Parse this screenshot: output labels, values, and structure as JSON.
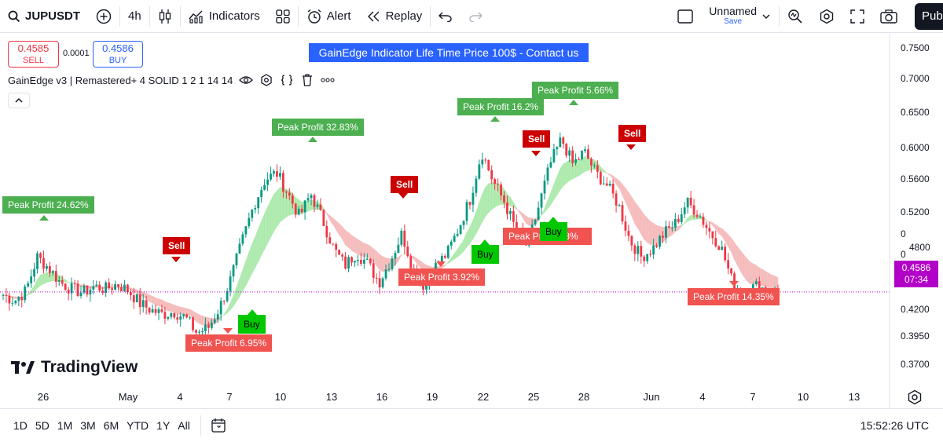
{
  "toolbar": {
    "symbol": "JUPUSDT",
    "interval": "4h",
    "indicators_label": "Indicators",
    "alert_label": "Alert",
    "replay_label": "Replay",
    "layout_name": "Unnamed",
    "layout_save": "Save",
    "publish_label": "Pub"
  },
  "trade_panel": {
    "sell_price": "0.4585",
    "sell_label": "SELL",
    "spread": "0.0001",
    "buy_price": "0.4586",
    "buy_label": "BUY"
  },
  "banner": "GainEdge Indicator Life Time Price 100$ - Contact us",
  "indicator": {
    "title": "GainEdge v3 | Remastered+ 4 SOLID 1 2 1 14 14",
    "icons": [
      "eye-icon",
      "settings-icon",
      "source-code-icon",
      "trash-icon",
      "more-icon"
    ]
  },
  "signals": {
    "peak_profit_1": "Peak Profit 24.62%",
    "sell_1": "Sell",
    "buy_1": "Buy",
    "peak_profit_2": "Peak Profit 6.95%",
    "peak_profit_3": "Peak Profit 32.83%",
    "sell_2": "Sell",
    "peak_profit_4": "Peak Profit 3.92%",
    "buy_2": "Buy",
    "peak_profit_5": "Peak Profit 16.2%",
    "sell_3": "Sell",
    "buy_3": "Buy",
    "peak_profit_6": "Peak Pr",
    "peak_profit_6_tail": "98%",
    "peak_profit_7": "Peak Profit 5.66%",
    "sell_4": "Sell",
    "peak_profit_8": "Peak Profit 14.35%"
  },
  "current_price": {
    "value": "0.4586",
    "countdown": "07:34"
  },
  "logo": "TradingView",
  "price_axis": [
    "0.7500",
    "0.7000",
    "0.6500",
    "0.6000",
    "0.5600",
    "0.5200",
    "0",
    "0",
    "4800",
    "0.4200",
    "0.3950",
    "0.3700"
  ],
  "time_axis": [
    "26",
    "May",
    "4",
    "7",
    "10",
    "13",
    "16",
    "19",
    "22",
    "25",
    "28",
    "Jun",
    "4",
    "7",
    "10",
    "13"
  ],
  "ranges": [
    "1D",
    "5D",
    "1M",
    "3M",
    "6M",
    "YTD",
    "1Y",
    "All"
  ],
  "clock": "15:52:26 UTC",
  "colors": {
    "up": "#089981",
    "down": "#f23645",
    "cloud_bull": "#a5e8a5",
    "cloud_bear": "#f5b5b5",
    "accent": "#2962ff",
    "last_price": "#b200c8"
  },
  "chart_data": {
    "type": "candlestick",
    "interval": "4h",
    "close_path": [
      0.455,
      0.448,
      0.46,
      0.5,
      0.487,
      0.47,
      0.462,
      0.458,
      0.465,
      0.462,
      0.468,
      0.46,
      0.445,
      0.437,
      0.432,
      0.435,
      0.428,
      0.41,
      0.416,
      0.44,
      0.475,
      0.52,
      0.562,
      0.592,
      0.6,
      0.575,
      0.548,
      0.575,
      0.545,
      0.51,
      0.49,
      0.505,
      0.492,
      0.47,
      0.496,
      0.528,
      0.485,
      0.465,
      0.49,
      0.505,
      0.535,
      0.57,
      0.625,
      0.59,
      0.565,
      0.532,
      0.512,
      0.56,
      0.61,
      0.64,
      0.61,
      0.625,
      0.6,
      0.585,
      0.562,
      0.52,
      0.5,
      0.51,
      0.528,
      0.54,
      0.565,
      0.552,
      0.53,
      0.512,
      0.47,
      0.455,
      0.466,
      0.462,
      0.458
    ],
    "last_price": 0.4586,
    "y_range": [
      0.355,
      0.765
    ],
    "x_ticks": [
      "26",
      "May",
      "4",
      "7",
      "10",
      "13",
      "16",
      "19",
      "22",
      "25",
      "28",
      "Jun",
      "4",
      "7",
      "10",
      "13"
    ]
  }
}
